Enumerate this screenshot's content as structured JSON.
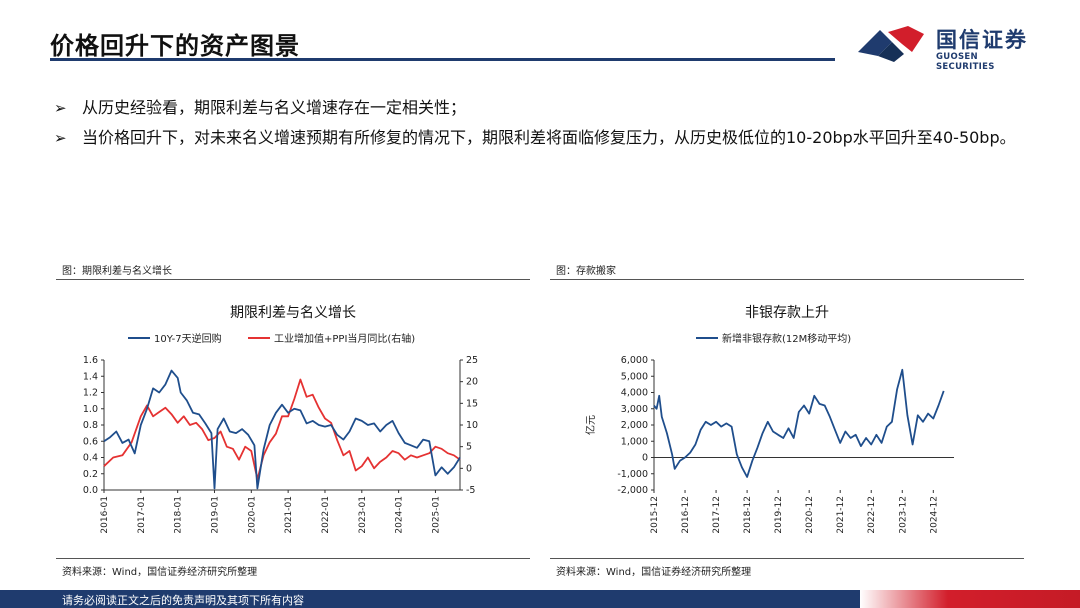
{
  "page": {
    "title": "价格回升下的资产图景",
    "bullets": [
      "从历史经验看，期限利差与名义增速存在一定相关性；",
      "当价格回升下，对未来名义增速预期有所修复的情况下，期限利差将面临修复压力，从历史极低位的10-20bp水平回升至40-50bp。"
    ],
    "bullet_marker": "➢",
    "footer": "请务必阅读正文之后的免责声明及其项下所有内容"
  },
  "logo": {
    "cn": "国信证券",
    "en": "GUOSEN SECURITIES",
    "colors": {
      "blue": "#1f3b6e",
      "red": "#d21e2b"
    }
  },
  "panels": [
    {
      "label": "图：期限利差与名义增长",
      "source": "资料来源：Wind，国信证券经济研究所整理"
    },
    {
      "label": "图：存款搬家",
      "source": "资料来源：Wind，国信证券经济研究所整理"
    }
  ],
  "chart_data": [
    {
      "type": "line",
      "title": "期限利差与名义增长",
      "x_ticks": [
        "2016-01",
        "2017-01",
        "2018-01",
        "2019-01",
        "2020-01",
        "2021-01",
        "2022-01",
        "2023-01",
        "2024-01",
        "2025-01"
      ],
      "x_range": [
        "2016-01",
        "2025-09"
      ],
      "ylim_left": [
        0.0,
        1.6
      ],
      "yticks_left": [
        "0.0",
        "0.2",
        "0.4",
        "0.6",
        "0.8",
        "1.0",
        "1.2",
        "1.4",
        "1.6"
      ],
      "ylim_right": [
        -5,
        25
      ],
      "yticks_right": [
        "-5",
        "0",
        "5",
        "10",
        "15",
        "20",
        "25"
      ],
      "legend_position": "top",
      "series": [
        {
          "name": "10Y-7天逆回购",
          "axis": "left",
          "color": "#1f4e8c",
          "points": [
            [
              "2016-01",
              0.6
            ],
            [
              "2016-03",
              0.65
            ],
            [
              "2016-05",
              0.72
            ],
            [
              "2016-07",
              0.58
            ],
            [
              "2016-09",
              0.62
            ],
            [
              "2016-11",
              0.45
            ],
            [
              "2017-01",
              0.8
            ],
            [
              "2017-03",
              1.0
            ],
            [
              "2017-05",
              1.25
            ],
            [
              "2017-07",
              1.2
            ],
            [
              "2017-09",
              1.3
            ],
            [
              "2017-11",
              1.47
            ],
            [
              "2018-01",
              1.38
            ],
            [
              "2018-02",
              1.2
            ],
            [
              "2018-04",
              1.1
            ],
            [
              "2018-06",
              0.95
            ],
            [
              "2018-08",
              0.93
            ],
            [
              "2018-10",
              0.82
            ],
            [
              "2018-12",
              0.7
            ],
            [
              "2019-01",
              0.02
            ],
            [
              "2019-02",
              0.75
            ],
            [
              "2019-04",
              0.88
            ],
            [
              "2019-06",
              0.72
            ],
            [
              "2019-08",
              0.7
            ],
            [
              "2019-10",
              0.75
            ],
            [
              "2019-12",
              0.68
            ],
            [
              "2020-02",
              0.55
            ],
            [
              "2020-03",
              0.02
            ],
            [
              "2020-05",
              0.5
            ],
            [
              "2020-07",
              0.8
            ],
            [
              "2020-09",
              0.95
            ],
            [
              "2020-11",
              1.05
            ],
            [
              "2021-01",
              0.95
            ],
            [
              "2021-03",
              1.0
            ],
            [
              "2021-05",
              0.98
            ],
            [
              "2021-07",
              0.82
            ],
            [
              "2021-09",
              0.85
            ],
            [
              "2021-11",
              0.8
            ],
            [
              "2022-01",
              0.78
            ],
            [
              "2022-03",
              0.8
            ],
            [
              "2022-05",
              0.68
            ],
            [
              "2022-07",
              0.62
            ],
            [
              "2022-09",
              0.72
            ],
            [
              "2022-11",
              0.88
            ],
            [
              "2023-01",
              0.85
            ],
            [
              "2023-03",
              0.8
            ],
            [
              "2023-05",
              0.82
            ],
            [
              "2023-07",
              0.72
            ],
            [
              "2023-09",
              0.8
            ],
            [
              "2023-11",
              0.85
            ],
            [
              "2024-01",
              0.7
            ],
            [
              "2024-03",
              0.58
            ],
            [
              "2024-05",
              0.55
            ],
            [
              "2024-07",
              0.52
            ],
            [
              "2024-09",
              0.62
            ],
            [
              "2024-11",
              0.6
            ],
            [
              "2025-01",
              0.18
            ],
            [
              "2025-03",
              0.28
            ],
            [
              "2025-05",
              0.2
            ],
            [
              "2025-07",
              0.28
            ],
            [
              "2025-09",
              0.4
            ]
          ]
        },
        {
          "name": "工业增加值+PPI当月同比(右轴)",
          "axis": "right",
          "color": "#e53232",
          "points": [
            [
              "2016-01",
              0.5
            ],
            [
              "2016-04",
              2.5
            ],
            [
              "2016-07",
              3.0
            ],
            [
              "2016-10",
              6.0
            ],
            [
              "2017-01",
              12.0
            ],
            [
              "2017-03",
              14.5
            ],
            [
              "2017-05",
              12.0
            ],
            [
              "2017-07",
              13.0
            ],
            [
              "2017-09",
              14.0
            ],
            [
              "2017-11",
              12.5
            ],
            [
              "2018-01",
              10.5
            ],
            [
              "2018-03",
              12.0
            ],
            [
              "2018-05",
              10.0
            ],
            [
              "2018-07",
              10.5
            ],
            [
              "2018-09",
              9.0
            ],
            [
              "2018-11",
              6.5
            ],
            [
              "2019-01",
              7.0
            ],
            [
              "2019-03",
              8.5
            ],
            [
              "2019-05",
              5.0
            ],
            [
              "2019-07",
              4.5
            ],
            [
              "2019-09",
              2.0
            ],
            [
              "2019-11",
              5.0
            ],
            [
              "2020-01",
              4.0
            ],
            [
              "2020-03",
              -2.5
            ],
            [
              "2020-05",
              3.0
            ],
            [
              "2020-07",
              6.0
            ],
            [
              "2020-09",
              8.0
            ],
            [
              "2020-11",
              12.0
            ],
            [
              "2021-01",
              12.0
            ],
            [
              "2021-03",
              16.0
            ],
            [
              "2021-05",
              20.5
            ],
            [
              "2021-07",
              16.5
            ],
            [
              "2021-09",
              17.0
            ],
            [
              "2021-11",
              14.0
            ],
            [
              "2022-01",
              11.5
            ],
            [
              "2022-03",
              10.5
            ],
            [
              "2022-05",
              6.5
            ],
            [
              "2022-07",
              3.0
            ],
            [
              "2022-09",
              4.0
            ],
            [
              "2022-11",
              -0.5
            ],
            [
              "2023-01",
              0.5
            ],
            [
              "2023-03",
              2.5
            ],
            [
              "2023-05",
              0.0
            ],
            [
              "2023-07",
              1.5
            ],
            [
              "2023-09",
              2.5
            ],
            [
              "2023-11",
              4.0
            ],
            [
              "2024-01",
              3.5
            ],
            [
              "2024-03",
              2.0
            ],
            [
              "2024-05",
              3.0
            ],
            [
              "2024-07",
              2.5
            ],
            [
              "2024-09",
              3.0
            ],
            [
              "2024-11",
              3.5
            ],
            [
              "2025-01",
              5.0
            ],
            [
              "2025-03",
              4.5
            ],
            [
              "2025-05",
              3.5
            ],
            [
              "2025-07",
              3.0
            ],
            [
              "2025-09",
              2.0
            ]
          ]
        }
      ]
    },
    {
      "type": "line",
      "title": "非银存款上升",
      "x_ticks": [
        "2015-12",
        "2016-12",
        "2017-12",
        "2018-12",
        "2019-12",
        "2020-12",
        "2021-12",
        "2022-12",
        "2023-12",
        "2024-12"
      ],
      "x_range": [
        "2015-12",
        "2025-08"
      ],
      "ylabel": "亿元",
      "ylim": [
        -2000,
        6000
      ],
      "yticks": [
        "-2,000",
        "-1,000",
        "0",
        "1,000",
        "2,000",
        "3,000",
        "4,000",
        "5,000",
        "6,000"
      ],
      "legend_position": "top",
      "series": [
        {
          "name": "新增非银存款(12M移动平均)",
          "color": "#1f4e8c",
          "points": [
            [
              "2015-12",
              3200
            ],
            [
              "2016-01",
              3000
            ],
            [
              "2016-02",
              3800
            ],
            [
              "2016-03",
              2500
            ],
            [
              "2016-05",
              1500
            ],
            [
              "2016-07",
              200
            ],
            [
              "2016-08",
              -700
            ],
            [
              "2016-10",
              -200
            ],
            [
              "2016-12",
              0
            ],
            [
              "2017-02",
              300
            ],
            [
              "2017-04",
              800
            ],
            [
              "2017-06",
              1700
            ],
            [
              "2017-08",
              2200
            ],
            [
              "2017-10",
              2000
            ],
            [
              "2017-12",
              2200
            ],
            [
              "2018-02",
              1900
            ],
            [
              "2018-04",
              2100
            ],
            [
              "2018-06",
              1900
            ],
            [
              "2018-08",
              200
            ],
            [
              "2018-10",
              -600
            ],
            [
              "2018-12",
              -1200
            ],
            [
              "2019-02",
              -200
            ],
            [
              "2019-04",
              600
            ],
            [
              "2019-06",
              1500
            ],
            [
              "2019-08",
              2200
            ],
            [
              "2019-10",
              1600
            ],
            [
              "2019-12",
              1400
            ],
            [
              "2020-02",
              1200
            ],
            [
              "2020-04",
              1800
            ],
            [
              "2020-06",
              1200
            ],
            [
              "2020-08",
              2800
            ],
            [
              "2020-10",
              3200
            ],
            [
              "2020-12",
              2700
            ],
            [
              "2021-02",
              3800
            ],
            [
              "2021-04",
              3300
            ],
            [
              "2021-06",
              3200
            ],
            [
              "2021-08",
              2500
            ],
            [
              "2021-10",
              1700
            ],
            [
              "2021-12",
              900
            ],
            [
              "2022-02",
              1600
            ],
            [
              "2022-04",
              1200
            ],
            [
              "2022-06",
              1400
            ],
            [
              "2022-08",
              700
            ],
            [
              "2022-10",
              1200
            ],
            [
              "2022-12",
              800
            ],
            [
              "2023-02",
              1400
            ],
            [
              "2023-04",
              900
            ],
            [
              "2023-06",
              1900
            ],
            [
              "2023-08",
              2200
            ],
            [
              "2023-10",
              4200
            ],
            [
              "2023-12",
              5400
            ],
            [
              "2024-02",
              2600
            ],
            [
              "2024-04",
              800
            ],
            [
              "2024-06",
              2600
            ],
            [
              "2024-08",
              2200
            ],
            [
              "2024-10",
              2700
            ],
            [
              "2024-12",
              2400
            ],
            [
              "2025-02",
              3200
            ],
            [
              "2025-04",
              4100
            ]
          ]
        }
      ]
    }
  ]
}
